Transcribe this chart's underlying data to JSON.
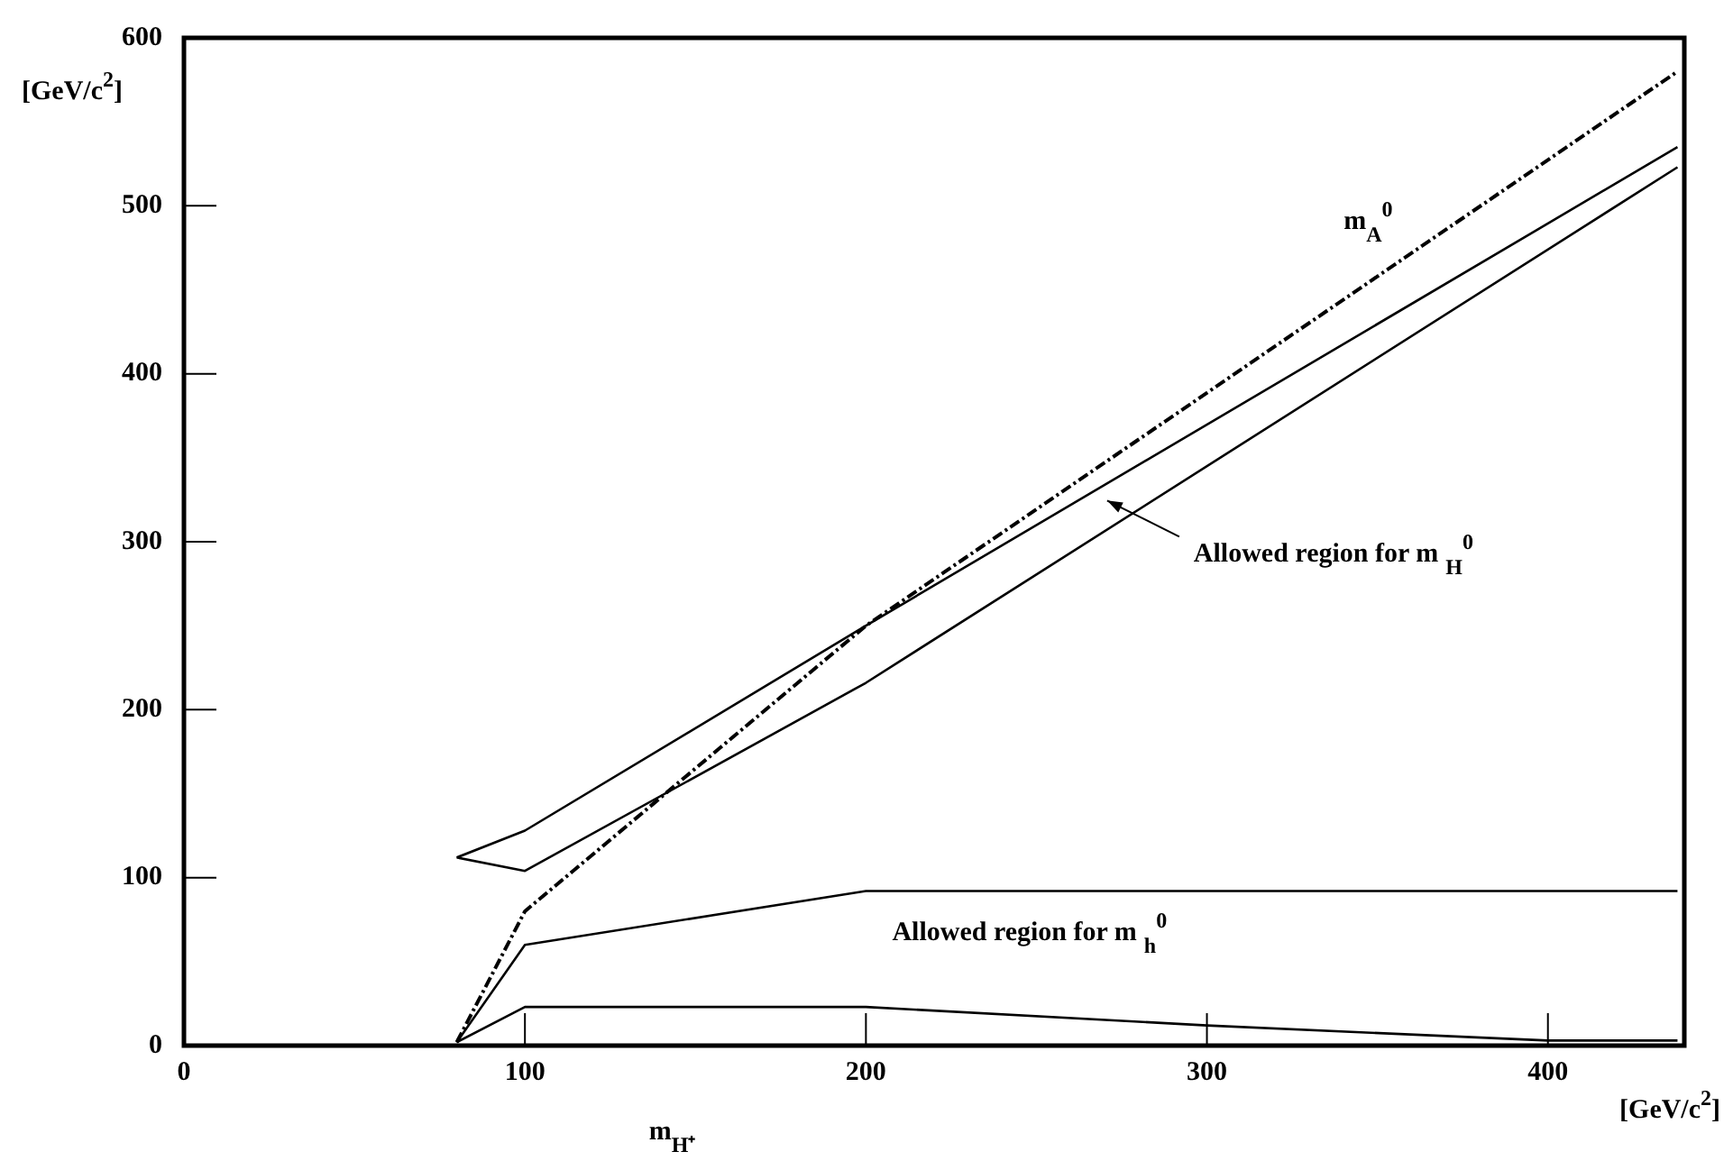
{
  "chart_data": {
    "type": "line",
    "xlabel": "m$_{H⁺}$",
    "ylabel": "[GeV/c$^{2}$]",
    "xlim": [
      0,
      440
    ],
    "ylim": [
      0,
      600
    ],
    "xticks": [
      0,
      100,
      200,
      300,
      400
    ],
    "yticks": [
      0,
      100,
      200,
      300,
      400,
      500,
      600
    ],
    "grid": false,
    "legend": false,
    "marker": "none",
    "series": [
      {
        "color": "#000000",
        "line_style": "dashed",
        "x": [
          80,
          100,
          200,
          438
        ],
        "values": [
          2,
          80,
          250,
          580
        ]
      },
      {
        "color": "#000000",
        "line_style": "solid",
        "x": [
          80,
          100,
          200,
          438
        ],
        "values": [
          112,
          128,
          250,
          535
        ]
      },
      {
        "color": "#000000",
        "line_style": "solid",
        "x": [
          80,
          100,
          200,
          438
        ],
        "values": [
          112,
          104,
          216,
          523
        ]
      },
      {
        "color": "#000000",
        "line_style": "solid",
        "x": [
          80,
          100,
          200,
          438
        ],
        "values": [
          2,
          60,
          92,
          92
        ]
      },
      {
        "color": "#000000",
        "line_style": "solid",
        "x": [
          80,
          100,
          200,
          300,
          400,
          438
        ],
        "values": [
          2,
          23,
          23,
          12,
          3,
          3
        ]
      }
    ],
    "annotations": [
      "m$_{A}$$^{0}$",
      "Allowed region for m $_{H}$$^{0}$",
      "Allowed region for m $_{h}$$^{0}$",
      "[GeV/c$^{2}$]"
    ]
  }
}
